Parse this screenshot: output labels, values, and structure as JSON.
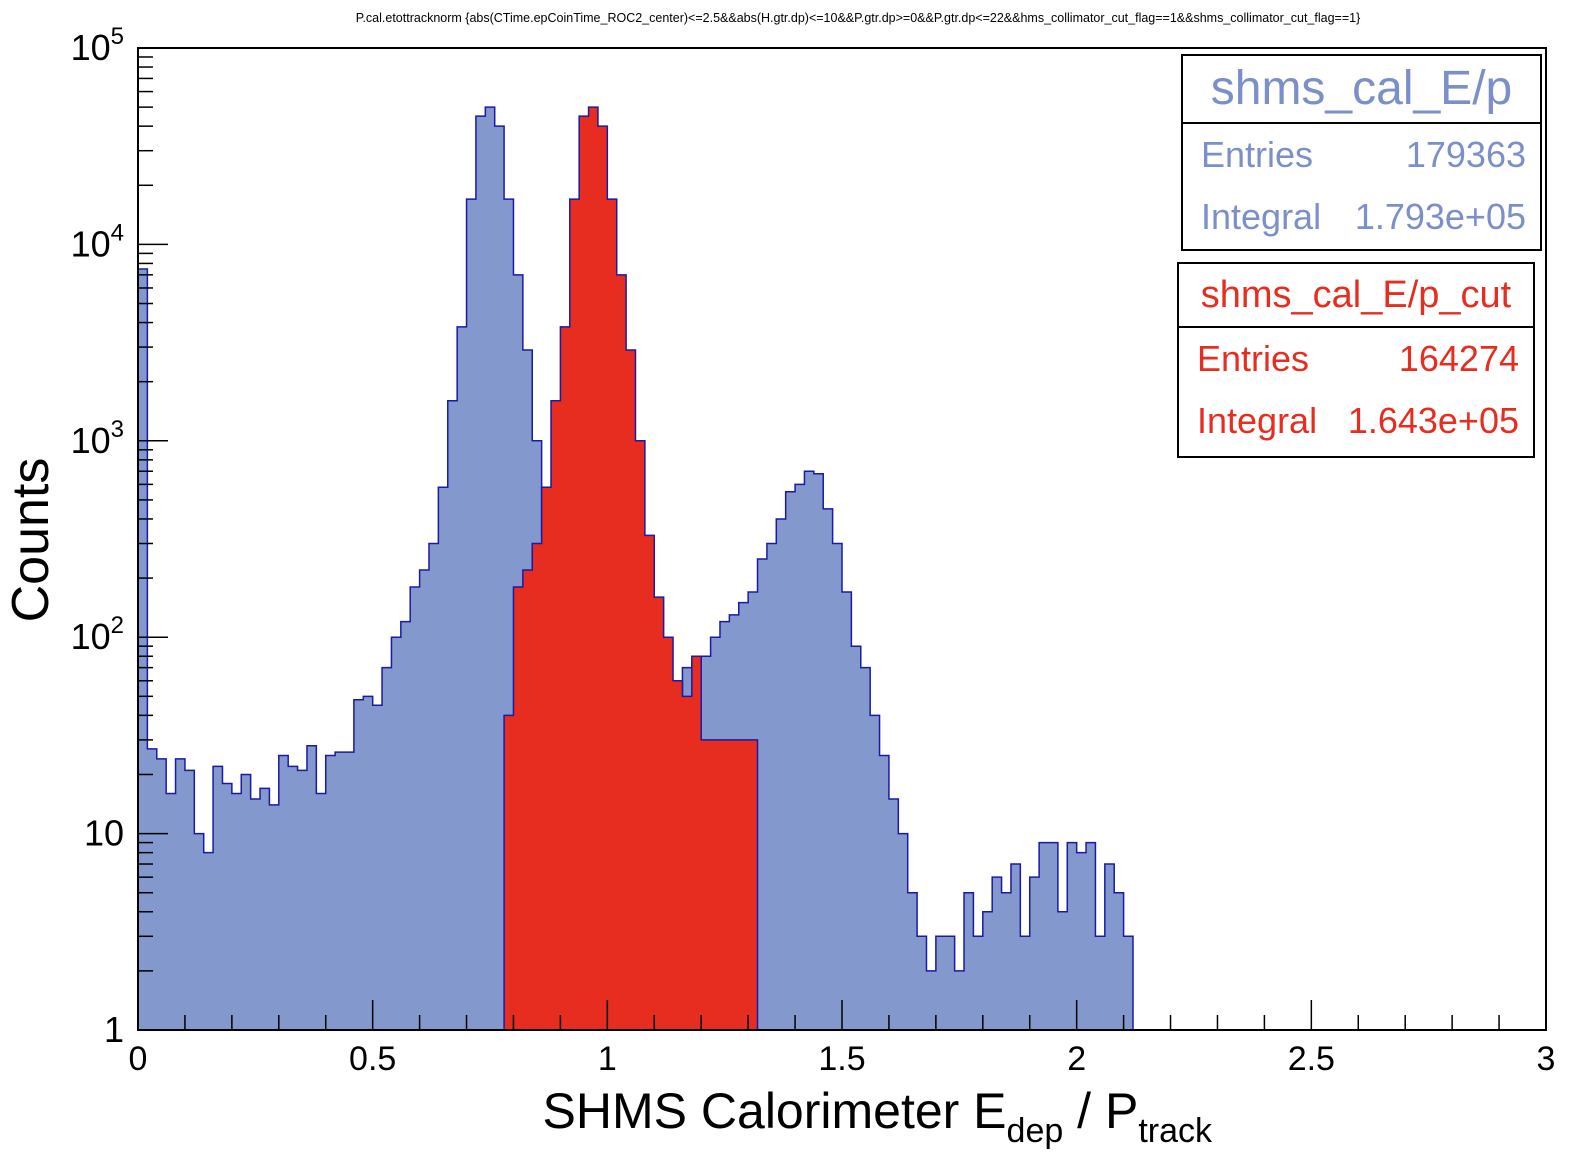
{
  "chart_data": {
    "type": "histogram",
    "title": "P.cal.etottracknorm {abs(CTime.epCoinTime_ROC2_center)<=2.5&&abs(H.gtr.dp)<=10&&P.gtr.dp>=0&&P.gtr.dp<=22&&hms_collimator_cut_flag==1&&shms_collimator_cut_flag==1}",
    "xlabel": {
      "main": "SHMS Calorimeter E",
      "sub1": "dep",
      "mid": " / P",
      "sub2": "track"
    },
    "ylabel": "Counts",
    "xlim": [
      0,
      3
    ],
    "ylim": [
      1,
      100000
    ],
    "yscale": "log",
    "bin_width": 0.02,
    "x_ticks": [
      "0",
      "0.5",
      "1",
      "1.5",
      "2",
      "2.5",
      "3"
    ],
    "y_ticks": [
      {
        "value": 1,
        "base": "1",
        "exp": ""
      },
      {
        "value": 10,
        "base": "10",
        "exp": ""
      },
      {
        "value": 100,
        "base": "10",
        "exp": "2"
      },
      {
        "value": 1000,
        "base": "10",
        "exp": "3"
      },
      {
        "value": 10000,
        "base": "10",
        "exp": "4"
      },
      {
        "value": 100000,
        "base": "10",
        "exp": "5"
      }
    ],
    "series": [
      {
        "name": "shms_cal_E/p",
        "color": "#8398cc",
        "edge": "#1a1aa6",
        "x_start": 0,
        "values": [
          7500,
          27,
          24,
          16,
          24,
          21,
          10,
          8,
          22,
          18,
          16,
          20,
          15,
          17,
          14,
          25,
          22,
          21,
          28,
          16,
          25,
          26,
          26,
          48,
          50,
          45,
          70,
          100,
          120,
          180,
          220,
          300,
          580,
          1600,
          3800,
          17000,
          45000,
          50000,
          40000,
          17000,
          7000,
          2900,
          1000,
          330,
          160,
          100,
          60,
          50,
          80,
          35,
          35,
          50,
          30,
          32,
          34,
          40,
          45,
          50,
          70,
          75,
          80,
          100,
          120,
          130,
          150,
          170,
          250,
          300,
          400,
          550,
          600,
          700,
          680,
          450,
          300,
          170,
          90,
          70,
          40,
          25,
          15,
          10,
          5,
          3,
          2,
          3,
          3,
          2,
          5,
          3,
          4,
          6,
          5,
          7,
          3,
          6,
          9,
          9,
          4,
          9,
          8,
          9,
          3,
          7,
          5,
          3
        ]
      },
      {
        "name": "shms_cal_E/p_cut",
        "color": "#e62d1f",
        "edge": "#1a1aa6",
        "x_start": 0.78,
        "values": [
          40,
          180,
          220,
          300,
          580,
          1600,
          3800,
          17000,
          45000,
          50000,
          40000,
          17000,
          7000,
          2900,
          1000,
          330,
          160,
          100,
          60,
          50,
          80,
          30,
          30,
          30,
          30,
          30,
          30
        ]
      }
    ]
  },
  "stats_boxes": [
    {
      "title": "shms_cal_E/p",
      "rows": [
        {
          "label": "Entries",
          "value": "179363"
        },
        {
          "label": "Integral",
          "value": "1.793e+05"
        }
      ]
    },
    {
      "title": "shms_cal_E/p_cut",
      "rows": [
        {
          "label": "Entries",
          "value": "164274"
        },
        {
          "label": "Integral",
          "value": "1.643e+05"
        }
      ]
    }
  ]
}
